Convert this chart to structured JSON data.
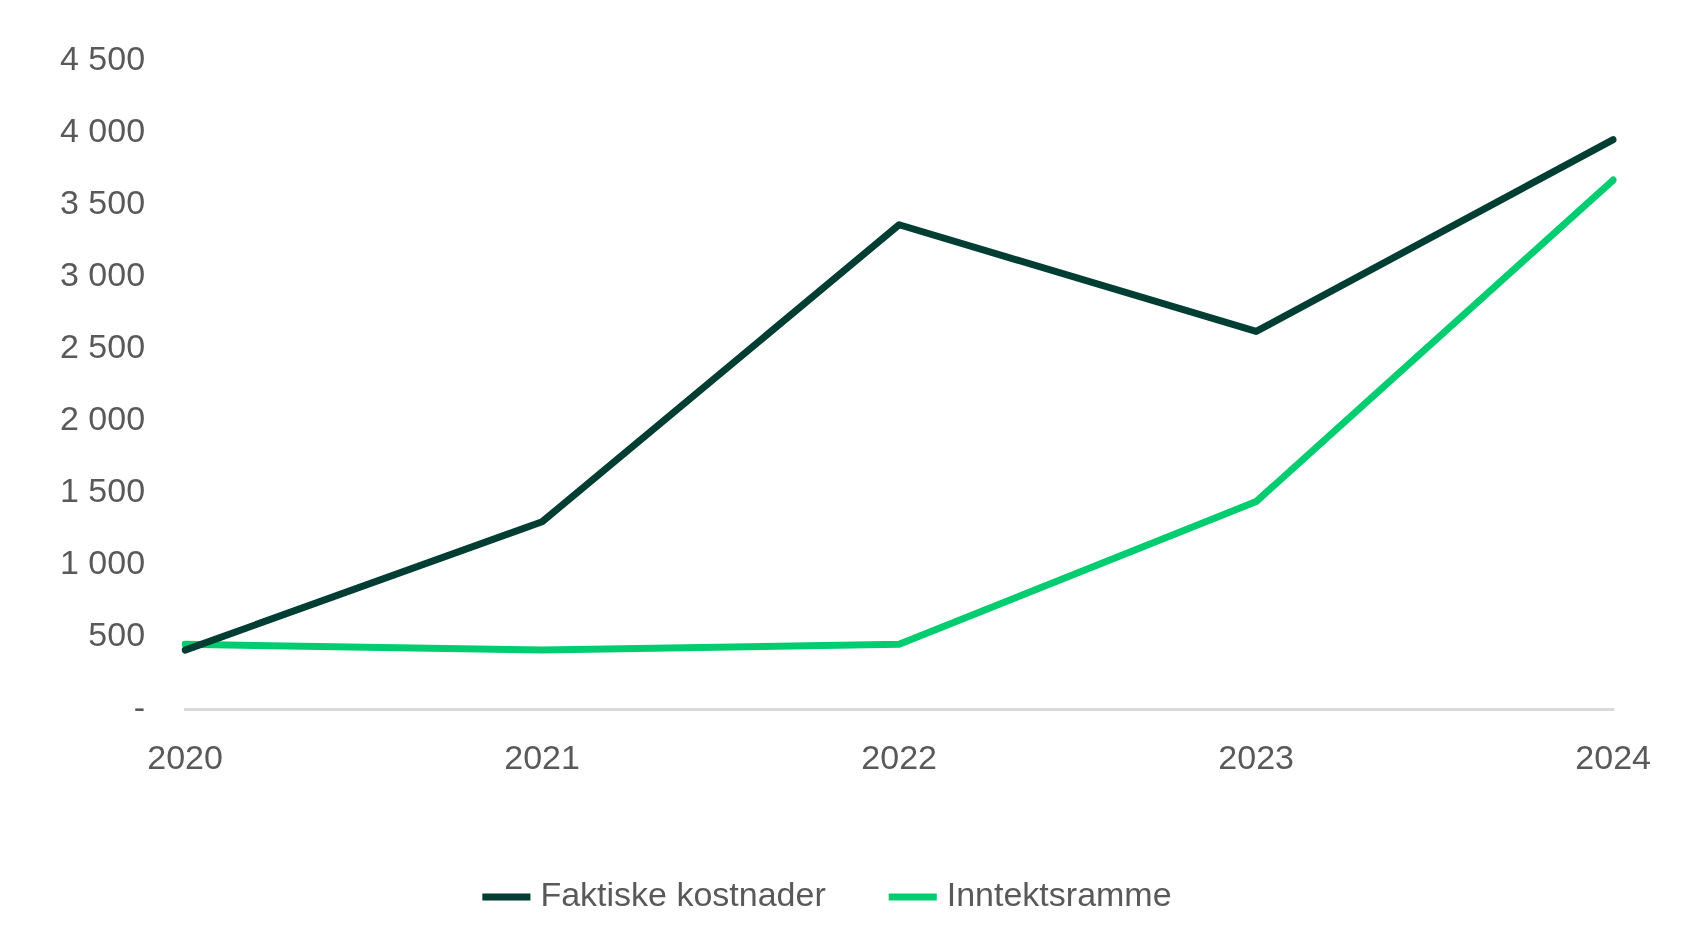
{
  "chart_data": {
    "type": "line",
    "categories": [
      "2020",
      "2021",
      "2022",
      "2023",
      "2024"
    ],
    "series": [
      {
        "name": "Faktiske kostnader",
        "color": "#003d33",
        "values": [
          410,
          1300,
          3360,
          2620,
          3950
        ]
      },
      {
        "name": "Inntektsramme",
        "color": "#00cc70",
        "values": [
          450,
          410,
          450,
          1440,
          3670
        ]
      }
    ],
    "ylim": [
      0,
      4500
    ],
    "yticks": [
      {
        "value": 0,
        "label": "-"
      },
      {
        "value": 500,
        "label": "500"
      },
      {
        "value": 1000,
        "label": "1 000"
      },
      {
        "value": 1500,
        "label": "1 500"
      },
      {
        "value": 2000,
        "label": "2 000"
      },
      {
        "value": 2500,
        "label": "2 500"
      },
      {
        "value": 3000,
        "label": "3 000"
      },
      {
        "value": 3500,
        "label": "3 500"
      },
      {
        "value": 4000,
        "label": "4 000"
      },
      {
        "value": 4500,
        "label": "4 500"
      }
    ],
    "grid": false,
    "legend": "bottom",
    "marker": "none",
    "line_style": "solid"
  }
}
